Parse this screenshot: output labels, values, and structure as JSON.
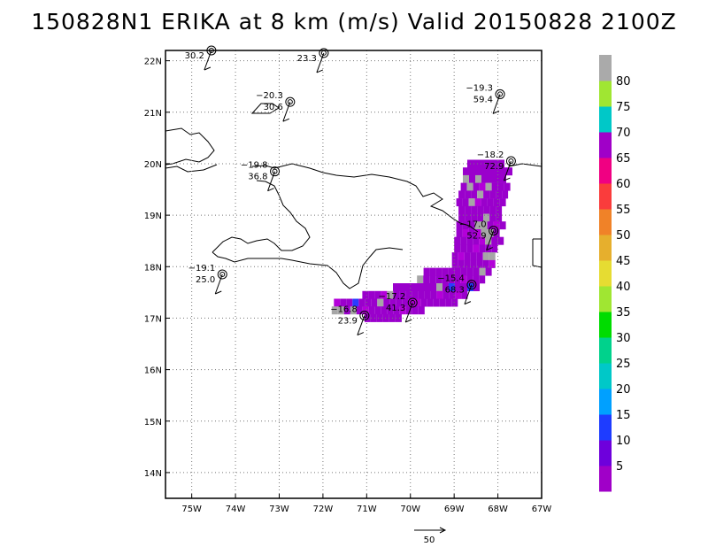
{
  "title": "150828N1 ERIKA at 8 km (m/s) Valid 20150828 2100Z",
  "map": {
    "lon_range": [
      -75.6,
      -67.0
    ],
    "lat_range": [
      13.5,
      22.2
    ],
    "x_ticks": [
      {
        "lon": -75,
        "label": "75W"
      },
      {
        "lon": -74,
        "label": "74W"
      },
      {
        "lon": -73,
        "label": "73W"
      },
      {
        "lon": -72,
        "label": "72W"
      },
      {
        "lon": -71,
        "label": "71W"
      },
      {
        "lon": -70,
        "label": "70W"
      },
      {
        "lon": -69,
        "label": "69W"
      },
      {
        "lon": -68,
        "label": "68W"
      },
      {
        "lon": -67,
        "label": "67W"
      }
    ],
    "y_ticks": [
      {
        "lat": 14,
        "label": "14N"
      },
      {
        "lat": 15,
        "label": "15N"
      },
      {
        "lat": 16,
        "label": "16N"
      },
      {
        "lat": 17,
        "label": "17N"
      },
      {
        "lat": 18,
        "label": "18N"
      },
      {
        "lat": 19,
        "label": "19N"
      },
      {
        "lat": 20,
        "label": "20N"
      },
      {
        "lat": 21,
        "label": "21N"
      },
      {
        "lat": 22,
        "label": "22N"
      }
    ],
    "grid": true
  },
  "stations": [
    {
      "lon": -74.55,
      "lat": 22.2,
      "t": "",
      "w": "30.2"
    },
    {
      "lon": -71.98,
      "lat": 22.15,
      "t": "",
      "w": "23.3"
    },
    {
      "lon": -72.75,
      "lat": 21.2,
      "t": "−20.3",
      "w": "30.6"
    },
    {
      "lon": -73.1,
      "lat": 19.85,
      "t": "−19.8",
      "w": "36.8"
    },
    {
      "lon": -67.95,
      "lat": 21.35,
      "t": "−19.3",
      "w": "59.4"
    },
    {
      "lon": -67.7,
      "lat": 20.05,
      "t": "−18.2",
      "w": "72.9"
    },
    {
      "lon": -74.3,
      "lat": 17.85,
      "t": "−19.1",
      "w": "25.0"
    },
    {
      "lon": -71.05,
      "lat": 17.05,
      "t": "−16.8",
      "w": "23.9"
    },
    {
      "lon": -69.95,
      "lat": 17.3,
      "t": "−17.2",
      "w": "41.3"
    },
    {
      "lon": -68.6,
      "lat": 17.65,
      "t": "−15.4",
      "w": "68.3"
    },
    {
      "lon": -68.1,
      "lat": 18.7,
      "t": "−17.0",
      "w": "52.9"
    }
  ],
  "colorbar": {
    "labels": [
      "5",
      "10",
      "15",
      "20",
      "25",
      "30",
      "35",
      "40",
      "45",
      "50",
      "55",
      "60",
      "65",
      "70",
      "75",
      "80"
    ],
    "colors": [
      "#a000c8",
      "#6e00dc",
      "#1e3cff",
      "#00a0ff",
      "#00c8c8",
      "#00d28c",
      "#00dc00",
      "#a0e632",
      "#e6dc32",
      "#e6af2d",
      "#f08228",
      "#fa3c3c",
      "#f00082",
      "#a000c8",
      "#00c8c8",
      "#a0e632",
      "#aaaaaa"
    ]
  },
  "wind_field": [
    {
      "lat": 20.0,
      "lon0": -68.7,
      "lon1": -67.9
    },
    {
      "lat": 19.85,
      "lon0": -68.8,
      "lon1": -67.8
    },
    {
      "lat": 19.7,
      "lon0": -68.8,
      "lon1": -67.85
    },
    {
      "lat": 19.55,
      "lon0": -68.85,
      "lon1": -67.85
    },
    {
      "lat": 19.4,
      "lon0": -68.9,
      "lon1": -67.9
    },
    {
      "lat": 19.25,
      "lon0": -68.95,
      "lon1": -67.9
    },
    {
      "lat": 19.1,
      "lon0": -68.9,
      "lon1": -67.95
    },
    {
      "lat": 18.95,
      "lon0": -68.9,
      "lon1": -67.95
    },
    {
      "lat": 18.8,
      "lon0": -68.95,
      "lon1": -67.95
    },
    {
      "lat": 18.65,
      "lon0": -68.95,
      "lon1": -68.0
    },
    {
      "lat": 18.5,
      "lon0": -69.0,
      "lon1": -68.0
    },
    {
      "lat": 18.35,
      "lon0": -69.0,
      "lon1": -68.05
    },
    {
      "lat": 18.2,
      "lon0": -69.05,
      "lon1": -68.1
    },
    {
      "lat": 18.05,
      "lon0": -69.05,
      "lon1": -68.2
    },
    {
      "lat": 17.9,
      "lon0": -69.7,
      "lon1": -68.2
    },
    {
      "lat": 17.75,
      "lon0": -69.85,
      "lon1": -68.35
    },
    {
      "lat": 17.6,
      "lon0": -70.4,
      "lon1": -68.5
    },
    {
      "lat": 17.45,
      "lon0": -71.1,
      "lon1": -68.7
    },
    {
      "lat": 17.3,
      "lon0": -71.75,
      "lon1": -69.0
    },
    {
      "lat": 17.15,
      "lon0": -71.8,
      "lon1": -69.7
    },
    {
      "lat": 17.0,
      "lon0": -71.05,
      "lon1": -70.3
    }
  ],
  "scale_arrow": {
    "label": "50"
  }
}
